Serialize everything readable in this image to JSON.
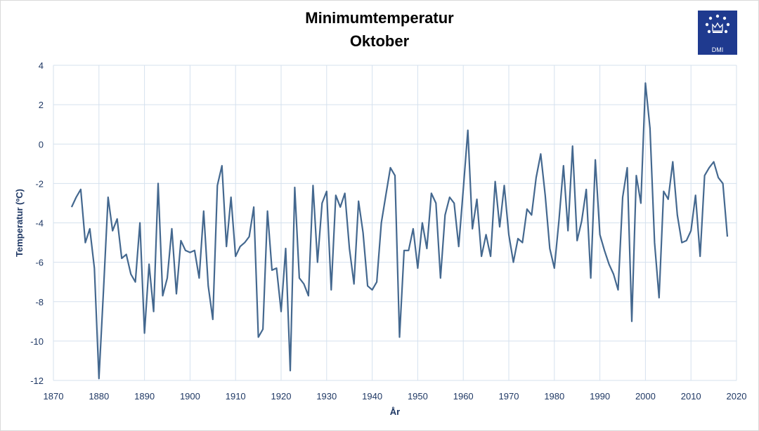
{
  "title": "Minimumtemperatur",
  "subtitle": "Oktober",
  "logo": {
    "text": "DMI",
    "color": "#1f3a8f"
  },
  "chart_data": {
    "type": "line",
    "title": "Minimumtemperatur Oktober",
    "xlabel": "År",
    "ylabel": "Temperatur (ºC)",
    "xlim": [
      1870,
      2020
    ],
    "ylim": [
      -12,
      4
    ],
    "xticks": [
      1870,
      1880,
      1890,
      1900,
      1910,
      1920,
      1930,
      1940,
      1950,
      1960,
      1970,
      1980,
      1990,
      2000,
      2010,
      2020
    ],
    "yticks": [
      -12,
      -10,
      -8,
      -6,
      -4,
      -2,
      0,
      2,
      4
    ],
    "grid": true,
    "line_color": "#44688f",
    "series": [
      {
        "x": [
          1874,
          1875,
          1876,
          1877,
          1878,
          1879,
          1880,
          1881,
          1882,
          1883,
          1884,
          1885,
          1886,
          1887,
          1888,
          1889,
          1890,
          1891,
          1892,
          1893,
          1894,
          1895,
          1896,
          1897,
          1898,
          1899,
          1900,
          1901,
          1902,
          1903,
          1904,
          1905,
          1906,
          1907,
          1908,
          1909,
          1910,
          1911,
          1912,
          1913,
          1914,
          1915,
          1916,
          1917,
          1918,
          1919,
          1920,
          1921,
          1922,
          1923,
          1924,
          1925,
          1926,
          1927,
          1928,
          1929,
          1930,
          1931,
          1932,
          1933,
          1934,
          1935,
          1936,
          1937,
          1938,
          1939,
          1940,
          1941,
          1942,
          1943,
          1944,
          1945,
          1946,
          1947,
          1948,
          1949,
          1950,
          1951,
          1952,
          1953,
          1954,
          1955,
          1956,
          1957,
          1958,
          1959,
          1960,
          1961,
          1962,
          1963,
          1964,
          1965,
          1966,
          1967,
          1968,
          1969,
          1970,
          1971,
          1972,
          1973,
          1974,
          1975,
          1976,
          1977,
          1978,
          1979,
          1980,
          1981,
          1982,
          1983,
          1984,
          1985,
          1986,
          1987,
          1988,
          1989,
          1990,
          1991,
          1992,
          1993,
          1994,
          1995,
          1996,
          1997,
          1998,
          1999,
          2000,
          2001,
          2002,
          2003,
          2004,
          2005,
          2006,
          2007,
          2008,
          2009,
          2010,
          2011,
          2012,
          2013,
          2014,
          2015,
          2016,
          2017,
          2018
        ],
        "values": [
          -3.2,
          -2.7,
          -2.3,
          -5.0,
          -4.3,
          -6.3,
          -11.9,
          -7.4,
          -2.7,
          -4.4,
          -3.8,
          -5.8,
          -5.6,
          -6.6,
          -7.0,
          -4.0,
          -9.6,
          -6.1,
          -8.5,
          -2.0,
          -7.7,
          -6.8,
          -4.3,
          -7.6,
          -4.9,
          -5.4,
          -5.5,
          -5.4,
          -6.8,
          -3.4,
          -7.2,
          -8.9,
          -2.1,
          -1.1,
          -5.2,
          -2.7,
          -5.7,
          -5.2,
          -5.0,
          -4.7,
          -3.2,
          -9.8,
          -9.4,
          -3.4,
          -6.4,
          -6.3,
          -8.5,
          -5.3,
          -11.5,
          -2.2,
          -6.8,
          -7.1,
          -7.7,
          -2.1,
          -6.0,
          -3.0,
          -2.4,
          -7.4,
          -2.6,
          -3.2,
          -2.5,
          -5.3,
          -7.1,
          -2.9,
          -4.5,
          -7.2,
          -7.4,
          -7.0,
          -4.0,
          -2.6,
          -1.2,
          -1.6,
          -9.8,
          -5.4,
          -5.4,
          -4.3,
          -6.3,
          -4.0,
          -5.3,
          -2.5,
          -3.0,
          -6.8,
          -3.6,
          -2.7,
          -3.0,
          -5.2,
          -2.3,
          0.7,
          -4.3,
          -2.8,
          -5.7,
          -4.6,
          -5.7,
          -1.9,
          -4.2,
          -2.1,
          -4.6,
          -6.0,
          -4.8,
          -5.0,
          -3.3,
          -3.6,
          -1.7,
          -0.5,
          -2.6,
          -5.3,
          -6.3,
          -3.9,
          -1.1,
          -4.4,
          -0.1,
          -4.9,
          -3.9,
          -2.3,
          -6.8,
          -0.8,
          -4.6,
          -5.4,
          -6.1,
          -6.6,
          -7.4,
          -2.7,
          -1.2,
          -9.0,
          -1.6,
          -3.0,
          3.1,
          0.8,
          -5.0,
          -7.8,
          -2.4,
          -2.8,
          -0.9,
          -3.6,
          -5.0,
          -4.9,
          -4.4,
          -2.6,
          -5.7,
          -1.6,
          -1.2,
          -0.9,
          -1.7,
          -2.0,
          -4.7
        ]
      }
    ]
  }
}
